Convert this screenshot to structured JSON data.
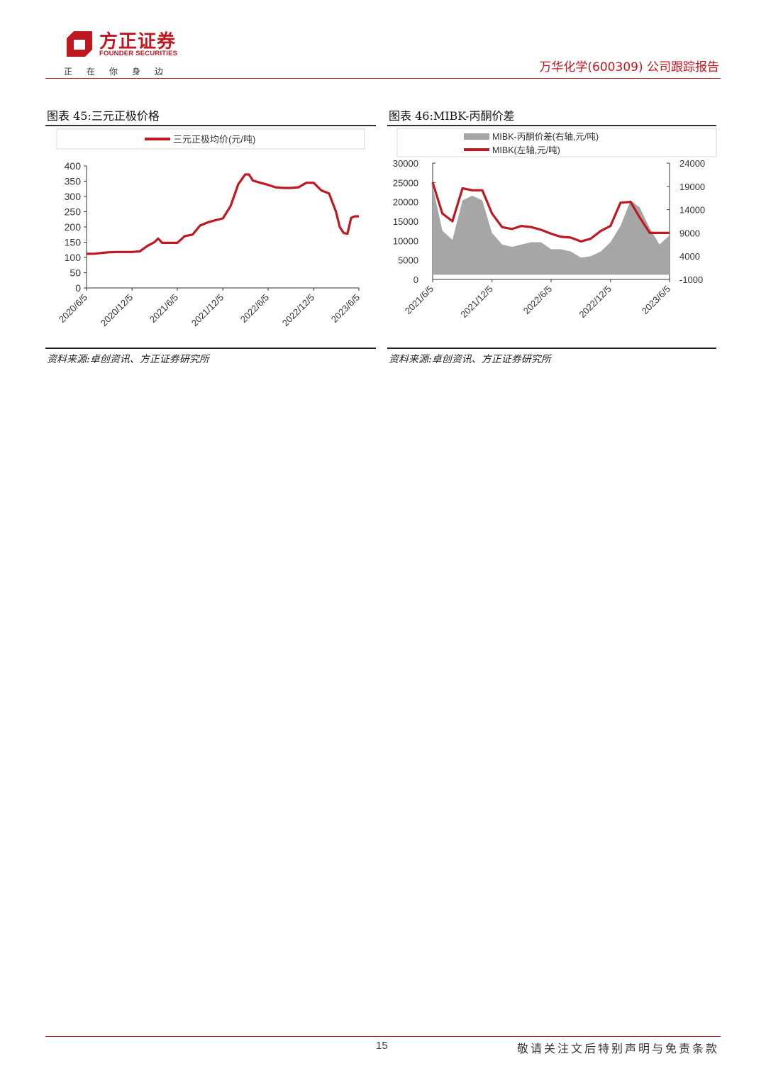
{
  "header": {
    "logo_cn": "方正证券",
    "logo_en": "FOUNDER SECURITIES",
    "slogan": "正在你身边",
    "report_title": "万华化学(600309) 公司跟踪报告",
    "colors": {
      "brand": "#c01820"
    }
  },
  "figure45": {
    "title": "图表 45:三元正极价格",
    "source": "资料来源:卓创资讯、方正证券研究所",
    "chart_data": {
      "type": "line",
      "legend": "三元正极均价(元/吨)",
      "legend_position": "top",
      "y_ticks": [
        "0",
        "50",
        "100",
        "150",
        "200",
        "250",
        "300",
        "350",
        "400"
      ],
      "ylim": [
        0,
        400
      ],
      "x_ticks": [
        "2020/6/5",
        "2020/12/5",
        "2021/6/5",
        "2021/12/5",
        "2022/6/5",
        "2022/12/5",
        "2023/6/5"
      ],
      "series": [
        {
          "name": "三元正极均价(元/吨)",
          "color": "#c01820",
          "x": [
            "2020/6/5",
            "2020/7/5",
            "2020/8/5",
            "2020/9/5",
            "2020/10/5",
            "2020/11/5",
            "2020/12/5",
            "2021/1/5",
            "2021/2/5",
            "2021/3/5",
            "2021/3/20",
            "2021/4/5",
            "2021/5/5",
            "2021/6/5",
            "2021/7/5",
            "2021/8/5",
            "2021/9/5",
            "2021/10/5",
            "2021/11/5",
            "2021/12/5",
            "2022/1/5",
            "2022/2/5",
            "2022/3/5",
            "2022/3/20",
            "2022/4/5",
            "2022/5/5",
            "2022/6/5",
            "2022/7/5",
            "2022/8/5",
            "2022/9/5",
            "2022/10/5",
            "2022/11/5",
            "2022/12/5",
            "2023/1/5",
            "2023/2/5",
            "2023/3/5",
            "2023/3/20",
            "2023/4/5",
            "2023/4/20",
            "2023/5/5",
            "2023/5/20",
            "2023/6/5"
          ],
          "values": [
            112,
            112,
            115,
            117,
            118,
            118,
            118,
            120,
            138,
            150,
            162,
            148,
            148,
            148,
            170,
            175,
            205,
            215,
            222,
            228,
            268,
            340,
            372,
            372,
            352,
            345,
            338,
            330,
            328,
            328,
            330,
            345,
            345,
            320,
            310,
            250,
            200,
            180,
            178,
            230,
            235,
            235
          ]
        }
      ]
    }
  },
  "figure46": {
    "title": "图表 46:MIBK-丙酮价差",
    "source": "资料来源:卓创资讯、方正证券研究所",
    "chart_data": {
      "type": "line+area",
      "legend_position": "top",
      "left_axis": {
        "ticks": [
          "0",
          "5000",
          "10000",
          "15000",
          "20000",
          "25000",
          "30000"
        ],
        "ylim": [
          0,
          30000
        ]
      },
      "right_axis": {
        "ticks": [
          "-1000",
          "4000",
          "9000",
          "14000",
          "19000",
          "24000"
        ],
        "ylim": [
          -1000,
          24000
        ]
      },
      "x_ticks": [
        "2021/6/5",
        "2021/12/5",
        "2022/6/5",
        "2022/12/5",
        "2023/6/5"
      ],
      "series": [
        {
          "name": "MIBK-丙酮价差(右轴,元/吨)",
          "axis": "right",
          "color": "#a6a6a6",
          "x": [
            "2021/6/5",
            "2021/7/5",
            "2021/8/5",
            "2021/9/5",
            "2021/10/5",
            "2021/11/5",
            "2021/12/5",
            "2022/1/5",
            "2022/2/5",
            "2022/3/5",
            "2022/4/5",
            "2022/5/5",
            "2022/6/5",
            "2022/7/5",
            "2022/8/5",
            "2022/9/5",
            "2022/10/5",
            "2022/11/5",
            "2022/12/5",
            "2023/1/5",
            "2023/2/5",
            "2023/3/5",
            "2023/4/5",
            "2023/5/5",
            "2023/6/5"
          ],
          "values": [
            19000,
            9500,
            7500,
            16000,
            17000,
            16000,
            9000,
            6500,
            6000,
            6500,
            7000,
            7000,
            5500,
            5500,
            5000,
            3700,
            4000,
            5000,
            7000,
            10500,
            16000,
            14500,
            10000,
            6500,
            8500
          ]
        },
        {
          "name": "MIBK(左轴,元/吨)",
          "axis": "left",
          "color": "#c01820",
          "x": [
            "2021/6/5",
            "2021/7/5",
            "2021/8/5",
            "2021/9/5",
            "2021/10/5",
            "2021/11/5",
            "2021/12/5",
            "2022/1/5",
            "2022/2/5",
            "2022/3/5",
            "2022/4/5",
            "2022/5/5",
            "2022/6/5",
            "2022/7/5",
            "2022/8/5",
            "2022/9/5",
            "2022/10/5",
            "2022/11/5",
            "2022/12/5",
            "2023/1/5",
            "2023/2/5",
            "2023/3/5",
            "2023/4/5",
            "2023/5/5",
            "2023/6/5"
          ],
          "values": [
            25000,
            17000,
            15000,
            23500,
            23000,
            23000,
            17000,
            13500,
            13000,
            13800,
            13500,
            12800,
            11800,
            11000,
            10800,
            9800,
            10500,
            12500,
            13800,
            19800,
            20000,
            16000,
            12000,
            12000,
            12000
          ]
        }
      ]
    }
  },
  "footer": {
    "page_number": "15",
    "disclaimer": "敬请关注文后特别声明与免责条款"
  }
}
